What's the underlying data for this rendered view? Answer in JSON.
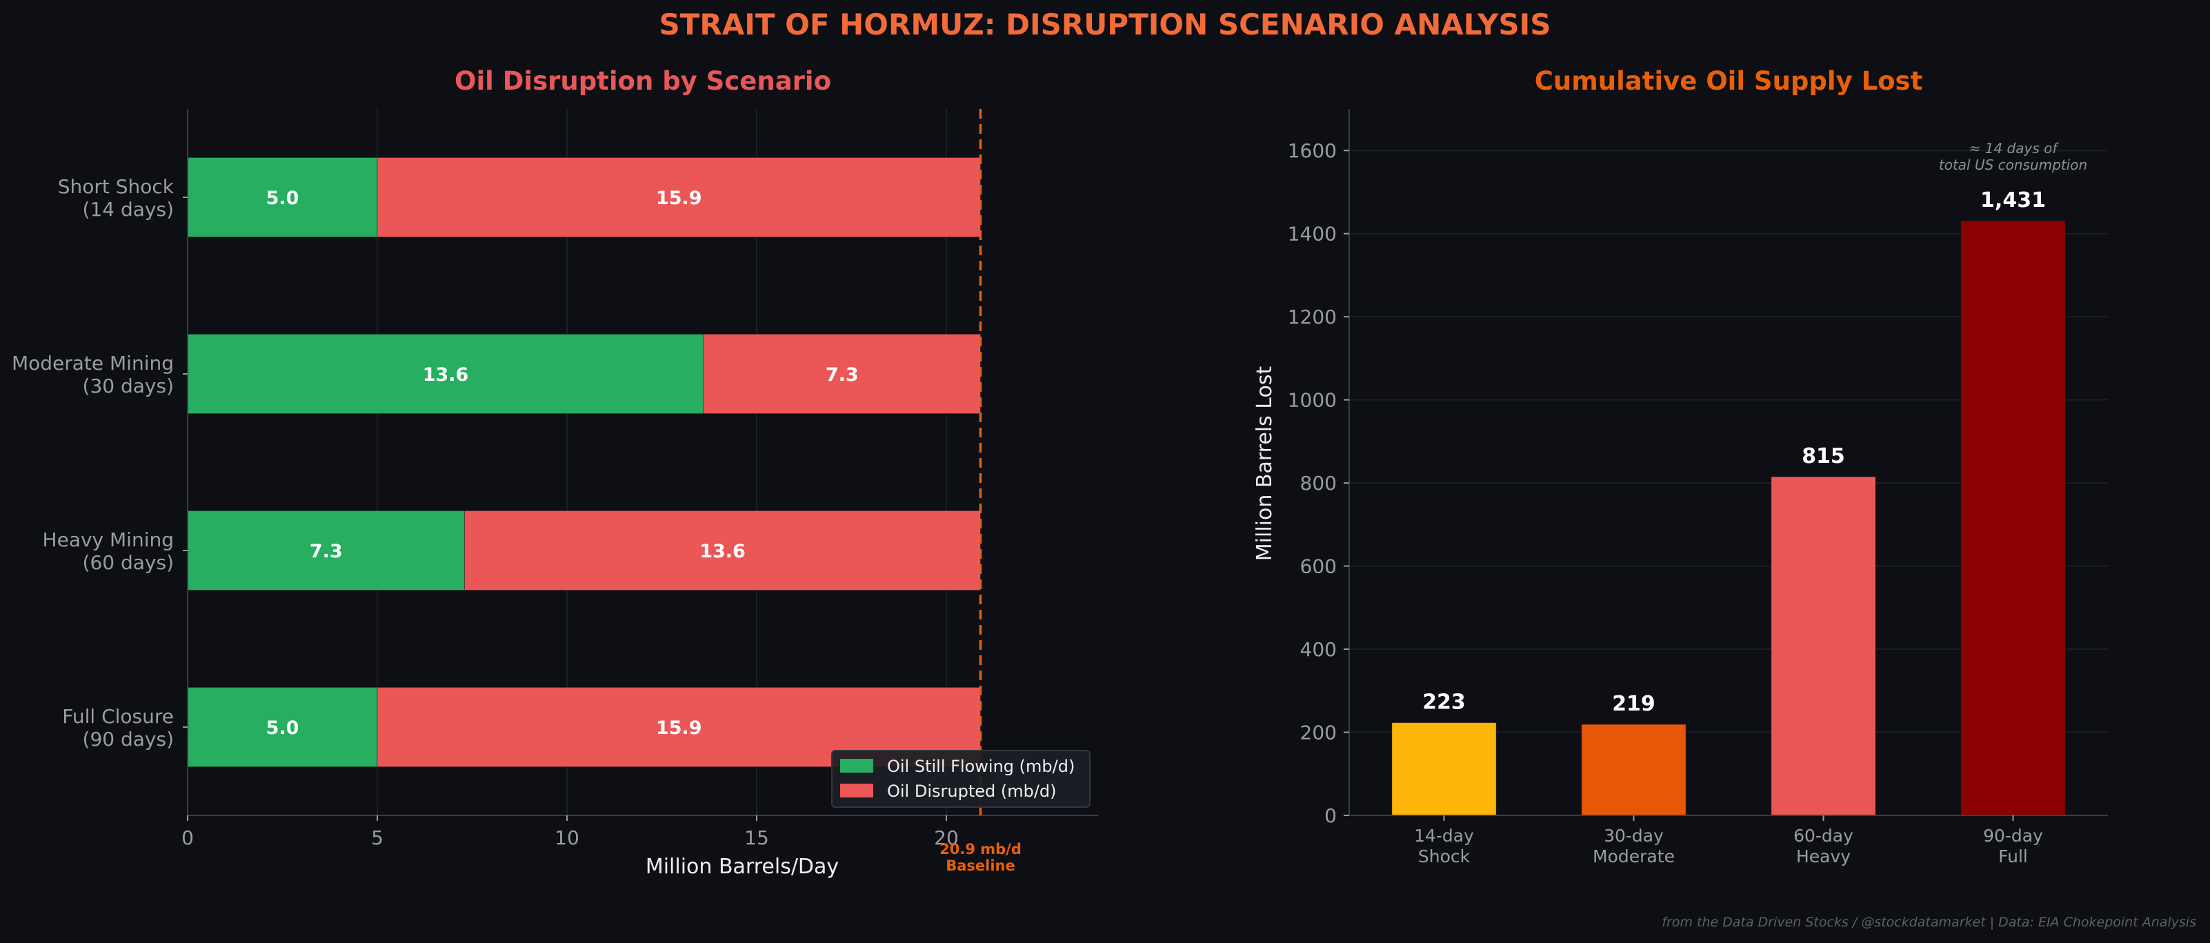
{
  "suptitle": "STRAIT OF HORMUZ: DISRUPTION SCENARIO ANALYSIS",
  "footer": "from the Data Driven Stocks / @stockdatamarket  |  Data: EIA Chokepoint Analysis",
  "colors": {
    "background": "#0d0f15",
    "suptitle": "#f26b38",
    "left_title": "#e85858",
    "right_title": "#e8600a",
    "flowing": "#27ae60",
    "disrupted": "#eb5757",
    "baseline": "#e8600a",
    "bar_14": "#ffb60a",
    "bar_30": "#e85608",
    "bar_60": "#eb5757",
    "bar_90": "#8b0000",
    "tick_text": "#9a9ca3",
    "label_text": "#eeeeee",
    "axis": "#3a3c44",
    "grid": "#1c1f26"
  },
  "chart_data": [
    {
      "type": "bar",
      "orientation": "horizontal",
      "stacked": true,
      "title": "Oil Disruption by Scenario",
      "xlabel": "Million Barrels/Day",
      "ylabel": "",
      "xlim": [
        0,
        24
      ],
      "xticks": [
        0,
        5,
        10,
        15,
        20
      ],
      "grid": true,
      "categories": [
        [
          "Short Shock",
          "(14 days)"
        ],
        [
          "Moderate Mining",
          "(30 days)"
        ],
        [
          "Heavy Mining",
          "(60 days)"
        ],
        [
          "Full Closure",
          "(90 days)"
        ]
      ],
      "series": [
        {
          "name": "Oil Still Flowing (mb/d)",
          "values": [
            5.0,
            13.6,
            7.3,
            5.0
          ]
        },
        {
          "name": "Oil Disrupted (mb/d)",
          "values": [
            15.9,
            7.3,
            13.6,
            15.9
          ]
        }
      ],
      "reference_line": {
        "x": 20.9,
        "label": [
          "20.9 mb/d",
          "Baseline"
        ]
      },
      "legend_position": "lower-right"
    },
    {
      "type": "bar",
      "title": "Cumulative Oil Supply Lost",
      "xlabel": "",
      "ylabel": "Million Barrels Lost",
      "ylim": [
        0,
        1700
      ],
      "yticks": [
        0,
        200,
        400,
        600,
        800,
        1000,
        1200,
        1400,
        1600
      ],
      "grid": true,
      "categories": [
        [
          "14-day",
          "Shock"
        ],
        [
          "30-day",
          "Moderate"
        ],
        [
          "60-day",
          "Heavy"
        ],
        [
          "90-day",
          "Full"
        ]
      ],
      "values": [
        223,
        219,
        815,
        1431
      ],
      "value_labels": [
        "223",
        "219",
        "815",
        "1,431"
      ],
      "annotation": {
        "text": [
          "≈ 14 days of",
          "total US consumption"
        ],
        "category_index": 3
      }
    }
  ]
}
